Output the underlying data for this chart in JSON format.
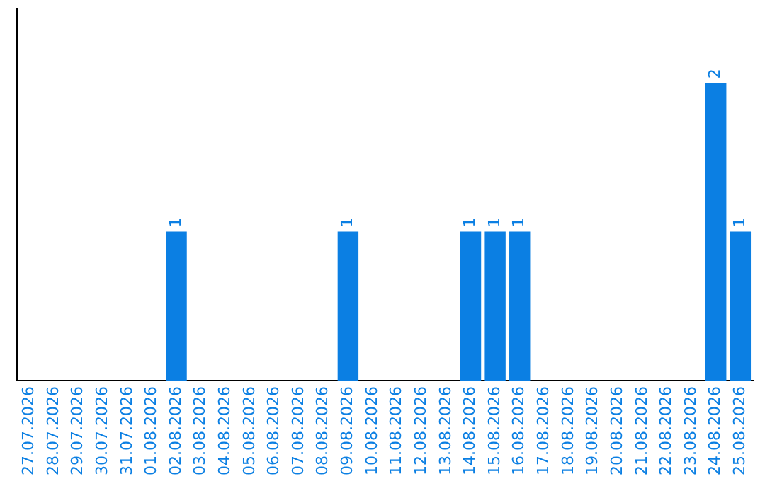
{
  "chart_data": {
    "type": "bar",
    "categories": [
      "27.07.2026",
      "28.07.2026",
      "29.07.2026",
      "30.07.2026",
      "31.07.2026",
      "01.08.2026",
      "02.08.2026",
      "03.08.2026",
      "04.08.2026",
      "05.08.2026",
      "06.08.2026",
      "07.08.2026",
      "08.08.2026",
      "09.08.2026",
      "10.08.2026",
      "11.08.2026",
      "12.08.2026",
      "13.08.2026",
      "14.08.2026",
      "15.08.2026",
      "16.08.2026",
      "17.08.2026",
      "18.08.2026",
      "19.08.2026",
      "20.08.2026",
      "21.08.2026",
      "22.08.2026",
      "23.08.2026",
      "24.08.2026",
      "25.08.2026"
    ],
    "values": [
      0,
      0,
      0,
      0,
      0,
      0,
      1,
      0,
      0,
      0,
      0,
      0,
      0,
      1,
      0,
      0,
      0,
      0,
      1,
      1,
      1,
      0,
      0,
      0,
      0,
      0,
      0,
      0,
      2,
      1
    ],
    "value_labels": [
      null,
      null,
      null,
      null,
      null,
      null,
      "1",
      null,
      null,
      null,
      null,
      null,
      null,
      "1",
      null,
      null,
      null,
      null,
      "1",
      "1",
      "1",
      null,
      null,
      null,
      null,
      null,
      null,
      null,
      "2",
      "1"
    ],
    "color": "#0b7fe3",
    "grid": false,
    "legend": false,
    "tick_labels": "x"
  }
}
